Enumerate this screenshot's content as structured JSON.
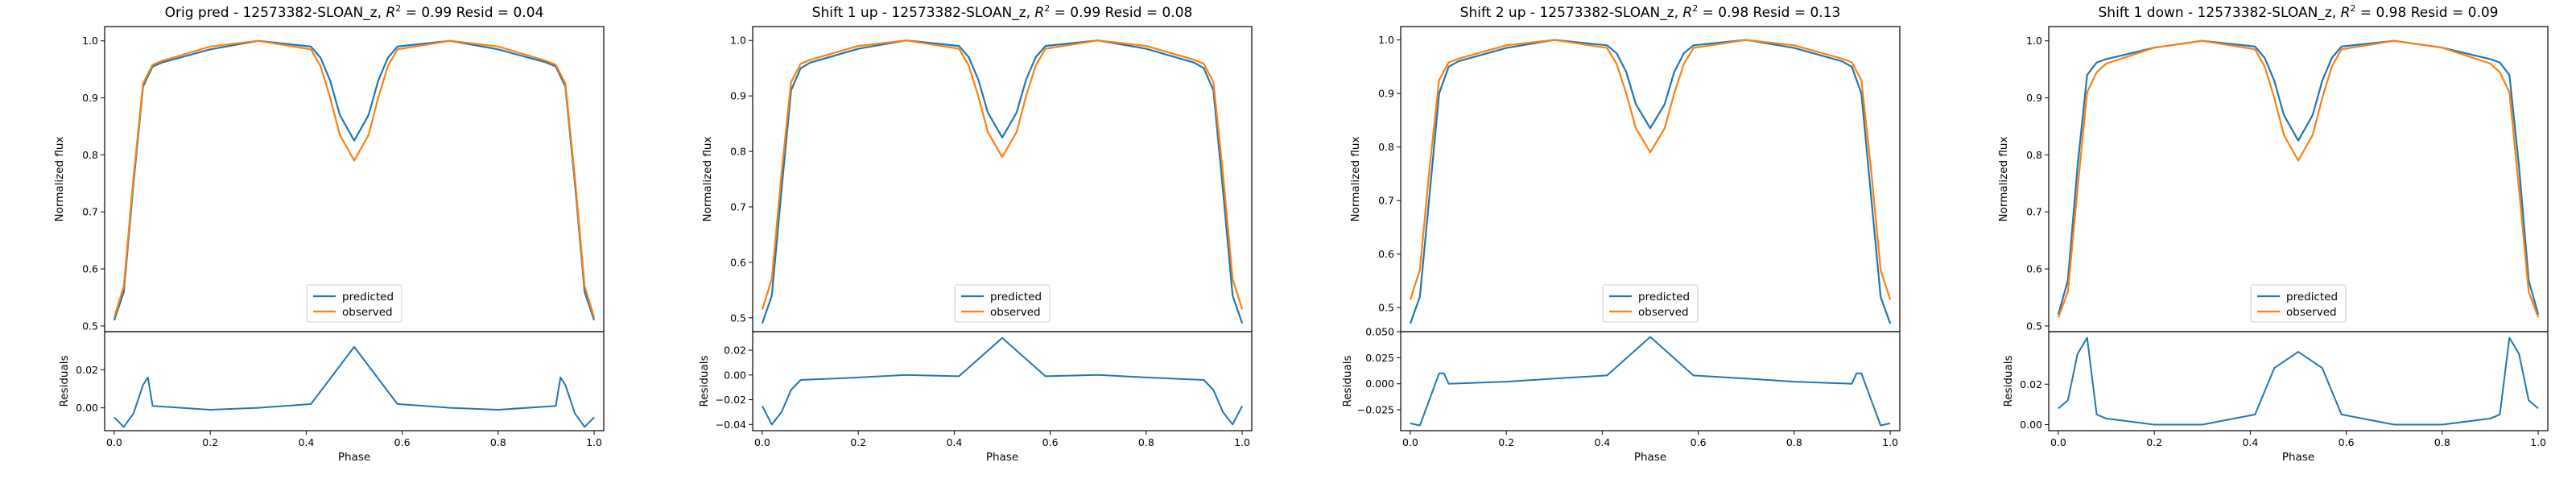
{
  "figure": {
    "colors": {
      "predicted": "#1f77b4",
      "observed": "#ff7f0e"
    },
    "legend": {
      "predicted": "predicted",
      "observed": "observed"
    }
  },
  "chart_data": [
    {
      "type": "line",
      "title_prefix": "Orig pred - 12573382-SLOAN_z, ",
      "r2_symbol": "R",
      "r2_exponent": "2",
      "title_suffix": " = 0.99 Resid = 0.04",
      "main": {
        "ylabel": "Normalized flux",
        "ylim": [
          0.49,
          1.025
        ],
        "yticks": [
          0.5,
          0.6,
          0.7,
          0.8,
          0.9,
          1.0
        ],
        "ytick_labels": [
          "0.5",
          "0.6",
          "0.7",
          "0.8",
          "0.9",
          "1.0"
        ],
        "legend_position": "lower center",
        "x": [
          0.0,
          0.02,
          0.04,
          0.06,
          0.08,
          0.1,
          0.2,
          0.3,
          0.41,
          0.43,
          0.45,
          0.47,
          0.5,
          0.53,
          0.55,
          0.57,
          0.59,
          0.7,
          0.8,
          0.9,
          0.92,
          0.94,
          0.96,
          0.98,
          1.0
        ],
        "series": [
          {
            "name": "predicted",
            "values": [
              0.51,
              0.56,
              0.75,
              0.92,
              0.955,
              0.962,
              0.985,
              1.0,
              0.99,
              0.97,
              0.93,
              0.87,
              0.825,
              0.87,
              0.93,
              0.97,
              0.99,
              1.0,
              0.985,
              0.962,
              0.955,
              0.92,
              0.75,
              0.56,
              0.51
            ]
          },
          {
            "name": "observed",
            "values": [
              0.515,
              0.57,
              0.76,
              0.925,
              0.958,
              0.965,
              0.99,
              1.0,
              0.985,
              0.955,
              0.9,
              0.835,
              0.79,
              0.835,
              0.9,
              0.955,
              0.985,
              1.0,
              0.99,
              0.965,
              0.958,
              0.925,
              0.76,
              0.57,
              0.515
            ]
          }
        ]
      },
      "residuals": {
        "ylabel": "Residuals",
        "xlabel": "Phase",
        "ylim": [
          -0.012,
          0.04
        ],
        "yticks": [
          0.0,
          0.02
        ],
        "ytick_labels": [
          "0.00",
          "0.02"
        ],
        "xlim": [
          -0.02,
          1.02
        ],
        "xticks": [
          0.0,
          0.2,
          0.4,
          0.6,
          0.8,
          1.0
        ],
        "xtick_labels": [
          "0.0",
          "0.2",
          "0.4",
          "0.6",
          "0.8",
          "1.0"
        ],
        "x": [
          0.0,
          0.02,
          0.04,
          0.06,
          0.07,
          0.08,
          0.2,
          0.3,
          0.41,
          0.5,
          0.59,
          0.7,
          0.8,
          0.92,
          0.93,
          0.94,
          0.96,
          0.98,
          1.0
        ],
        "values": [
          -0.005,
          -0.01,
          -0.003,
          0.012,
          0.016,
          0.001,
          -0.001,
          0.0,
          0.002,
          0.032,
          0.002,
          0.0,
          -0.001,
          0.001,
          0.016,
          0.012,
          -0.003,
          -0.01,
          -0.005
        ]
      }
    },
    {
      "type": "line",
      "title_prefix": "Shift 1 up - 12573382-SLOAN_z, ",
      "r2_symbol": "R",
      "r2_exponent": "2",
      "title_suffix": " = 0.99 Resid = 0.08",
      "main": {
        "ylabel": "Normalized flux",
        "ylim": [
          0.475,
          1.025
        ],
        "yticks": [
          0.5,
          0.6,
          0.7,
          0.8,
          0.9,
          1.0
        ],
        "ytick_labels": [
          "0.5",
          "0.6",
          "0.7",
          "0.8",
          "0.9",
          "1.0"
        ],
        "legend_position": "lower center",
        "x": [
          0.0,
          0.02,
          0.04,
          0.06,
          0.08,
          0.1,
          0.2,
          0.3,
          0.41,
          0.43,
          0.45,
          0.47,
          0.5,
          0.53,
          0.55,
          0.57,
          0.59,
          0.7,
          0.8,
          0.9,
          0.92,
          0.94,
          0.96,
          0.98,
          1.0
        ],
        "series": [
          {
            "name": "predicted",
            "values": [
              0.49,
              0.54,
              0.73,
              0.91,
              0.95,
              0.96,
              0.985,
              1.0,
              0.99,
              0.97,
              0.93,
              0.87,
              0.825,
              0.87,
              0.93,
              0.97,
              0.99,
              1.0,
              0.985,
              0.96,
              0.95,
              0.91,
              0.73,
              0.54,
              0.49
            ]
          },
          {
            "name": "observed",
            "values": [
              0.515,
              0.57,
              0.76,
              0.925,
              0.958,
              0.965,
              0.99,
              1.0,
              0.985,
              0.955,
              0.9,
              0.835,
              0.79,
              0.835,
              0.9,
              0.955,
              0.985,
              1.0,
              0.99,
              0.965,
              0.958,
              0.925,
              0.76,
              0.57,
              0.515
            ]
          }
        ]
      },
      "residuals": {
        "ylabel": "Residuals",
        "xlabel": "Phase",
        "ylim": [
          -0.045,
          0.035
        ],
        "yticks": [
          -0.04,
          -0.02,
          0.0,
          0.02
        ],
        "ytick_labels": [
          "−0.04",
          "−0.02",
          "0.00",
          "0.02"
        ],
        "xlim": [
          -0.02,
          1.02
        ],
        "xticks": [
          0.0,
          0.2,
          0.4,
          0.6,
          0.8,
          1.0
        ],
        "xtick_labels": [
          "0.0",
          "0.2",
          "0.4",
          "0.6",
          "0.8",
          "1.0"
        ],
        "x": [
          0.0,
          0.02,
          0.04,
          0.06,
          0.08,
          0.2,
          0.3,
          0.41,
          0.5,
          0.59,
          0.7,
          0.8,
          0.92,
          0.94,
          0.96,
          0.98,
          1.0
        ],
        "values": [
          -0.025,
          -0.04,
          -0.03,
          -0.012,
          -0.004,
          -0.002,
          0.0,
          -0.001,
          0.03,
          -0.001,
          0.0,
          -0.002,
          -0.004,
          -0.012,
          -0.03,
          -0.04,
          -0.025
        ]
      }
    },
    {
      "type": "line",
      "title_prefix": "Shift 2 up - 12573382-SLOAN_z, ",
      "r2_symbol": "R",
      "r2_exponent": "2",
      "title_suffix": " = 0.98 Resid = 0.13",
      "main": {
        "ylabel": "Normalized flux",
        "ylim": [
          0.455,
          1.025
        ],
        "yticks": [
          0.5,
          0.6,
          0.7,
          0.8,
          0.9,
          1.0
        ],
        "ytick_labels": [
          "0.5",
          "0.6",
          "0.7",
          "0.8",
          "0.9",
          "1.0"
        ],
        "legend_position": "lower center",
        "x": [
          0.0,
          0.02,
          0.04,
          0.06,
          0.08,
          0.1,
          0.2,
          0.3,
          0.41,
          0.43,
          0.45,
          0.47,
          0.5,
          0.53,
          0.55,
          0.57,
          0.59,
          0.7,
          0.8,
          0.9,
          0.92,
          0.94,
          0.96,
          0.98,
          1.0
        ],
        "series": [
          {
            "name": "predicted",
            "values": [
              0.47,
              0.52,
              0.71,
              0.9,
              0.95,
              0.96,
              0.985,
              1.0,
              0.99,
              0.975,
              0.94,
              0.88,
              0.835,
              0.88,
              0.94,
              0.975,
              0.99,
              1.0,
              0.985,
              0.96,
              0.95,
              0.9,
              0.71,
              0.52,
              0.47
            ]
          },
          {
            "name": "observed",
            "values": [
              0.515,
              0.57,
              0.76,
              0.925,
              0.958,
              0.965,
              0.99,
              1.0,
              0.985,
              0.955,
              0.9,
              0.835,
              0.79,
              0.835,
              0.9,
              0.955,
              0.985,
              1.0,
              0.99,
              0.965,
              0.958,
              0.925,
              0.76,
              0.57,
              0.515
            ]
          }
        ]
      },
      "residuals": {
        "ylabel": "Residuals",
        "xlabel": "Phase",
        "ylim": [
          -0.045,
          0.05
        ],
        "yticks": [
          -0.025,
          0.0,
          0.025,
          0.05
        ],
        "ytick_labels": [
          "−0.025",
          "0.000",
          "0.025",
          "0.050"
        ],
        "xlim": [
          -0.02,
          1.02
        ],
        "xticks": [
          0.0,
          0.2,
          0.4,
          0.6,
          0.8,
          1.0
        ],
        "xtick_labels": [
          "0.0",
          "0.2",
          "0.4",
          "0.6",
          "0.8",
          "1.0"
        ],
        "x": [
          0.0,
          0.02,
          0.04,
          0.06,
          0.07,
          0.08,
          0.2,
          0.3,
          0.41,
          0.5,
          0.59,
          0.7,
          0.8,
          0.92,
          0.93,
          0.94,
          0.96,
          0.98,
          1.0
        ],
        "values": [
          -0.038,
          -0.04,
          -0.015,
          0.01,
          0.01,
          0.0,
          0.002,
          0.005,
          0.008,
          0.045,
          0.008,
          0.005,
          0.002,
          0.0,
          0.01,
          0.01,
          -0.015,
          -0.04,
          -0.038
        ]
      }
    },
    {
      "type": "line",
      "title_prefix": "Shift 1 down - 12573382-SLOAN_z, ",
      "r2_symbol": "R",
      "r2_exponent": "2",
      "title_suffix": " = 0.98 Resid = 0.09",
      "main": {
        "ylabel": "Normalized flux",
        "ylim": [
          0.49,
          1.025
        ],
        "yticks": [
          0.5,
          0.6,
          0.7,
          0.8,
          0.9,
          1.0
        ],
        "ytick_labels": [
          "0.5",
          "0.6",
          "0.7",
          "0.8",
          "0.9",
          "1.0"
        ],
        "legend_position": "lower center",
        "x": [
          0.0,
          0.02,
          0.04,
          0.06,
          0.08,
          0.1,
          0.2,
          0.3,
          0.41,
          0.43,
          0.45,
          0.47,
          0.5,
          0.53,
          0.55,
          0.57,
          0.59,
          0.7,
          0.8,
          0.9,
          0.92,
          0.94,
          0.96,
          0.98,
          1.0
        ],
        "series": [
          {
            "name": "predicted",
            "values": [
              0.52,
              0.58,
              0.78,
              0.94,
              0.962,
              0.968,
              0.988,
              1.0,
              0.99,
              0.97,
              0.93,
              0.87,
              0.825,
              0.87,
              0.93,
              0.97,
              0.99,
              1.0,
              0.988,
              0.968,
              0.962,
              0.94,
              0.78,
              0.58,
              0.52
            ]
          },
          {
            "name": "observed",
            "values": [
              0.515,
              0.56,
              0.74,
              0.91,
              0.945,
              0.96,
              0.988,
              1.0,
              0.985,
              0.955,
              0.9,
              0.835,
              0.79,
              0.835,
              0.9,
              0.955,
              0.985,
              1.0,
              0.988,
              0.96,
              0.945,
              0.91,
              0.74,
              0.56,
              0.515
            ]
          }
        ]
      },
      "residuals": {
        "ylabel": "Residuals",
        "xlabel": "Phase",
        "ylim": [
          -0.003,
          0.046
        ],
        "yticks": [
          0.0,
          0.02
        ],
        "ytick_labels": [
          "0.00",
          "0.02"
        ],
        "xlim": [
          -0.02,
          1.02
        ],
        "xticks": [
          0.0,
          0.2,
          0.4,
          0.6,
          0.8,
          1.0
        ],
        "xtick_labels": [
          "0.0",
          "0.2",
          "0.4",
          "0.6",
          "0.8",
          "1.0"
        ],
        "x": [
          0.0,
          0.02,
          0.04,
          0.06,
          0.08,
          0.1,
          0.2,
          0.3,
          0.41,
          0.45,
          0.5,
          0.55,
          0.59,
          0.7,
          0.8,
          0.9,
          0.92,
          0.94,
          0.96,
          0.98,
          1.0
        ],
        "values": [
          0.008,
          0.012,
          0.035,
          0.043,
          0.005,
          0.003,
          0.0,
          0.0,
          0.005,
          0.028,
          0.036,
          0.028,
          0.005,
          0.0,
          0.0,
          0.003,
          0.005,
          0.043,
          0.035,
          0.012,
          0.008
        ]
      }
    }
  ]
}
